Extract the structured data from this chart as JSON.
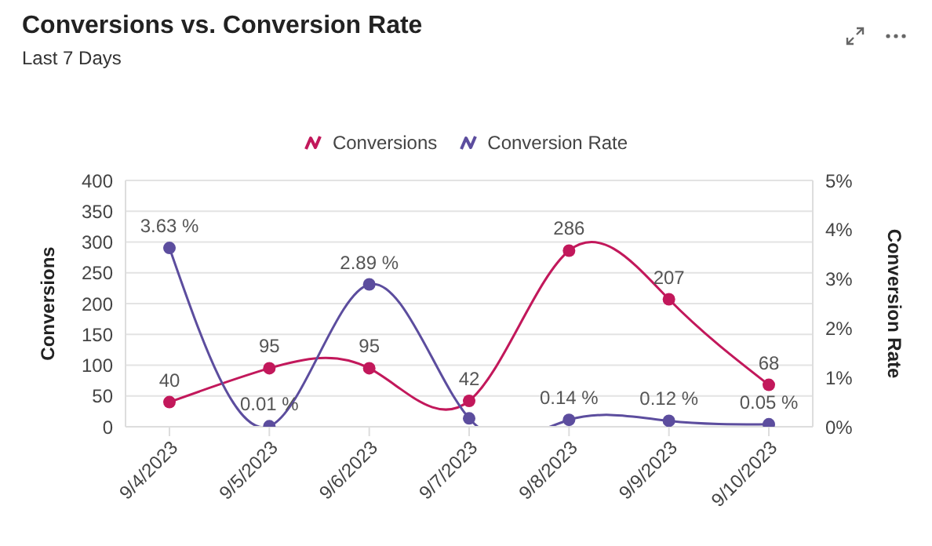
{
  "chart_data": {
    "type": "line",
    "title": "Conversions vs. Conversion Rate",
    "subtitle": "Last 7 Days",
    "ylabel": "Conversions",
    "y2label": "Conversion Rate",
    "categories": [
      "9/4/2023",
      "9/5/2023",
      "9/6/2023",
      "9/7/2023",
      "9/8/2023",
      "9/9/2023",
      "9/10/2023"
    ],
    "series": [
      {
        "name": "Conversions",
        "color": "#c2185b",
        "values": [
          40,
          95,
          95,
          42,
          286,
          207,
          68
        ],
        "value_labels": [
          "40",
          "95",
          "95",
          "42",
          "286",
          "207",
          "68"
        ]
      },
      {
        "name": "Conversion Rate",
        "color": "#5c4d9e",
        "axis": "y2",
        "values": [
          3.63,
          0.01,
          2.89,
          0.17,
          0.14,
          0.12,
          0.05
        ],
        "value_labels": [
          "3.63 %",
          "0.01 %",
          "2.89 %",
          null,
          "0.14 %",
          "0.12 %",
          "0.05 %"
        ]
      }
    ],
    "ylim": [
      0,
      400
    ],
    "yticks": [
      0,
      50,
      100,
      150,
      200,
      250,
      300,
      350,
      400
    ],
    "y2lim": [
      0,
      5
    ],
    "y2ticks": [
      {
        "value": 0,
        "label": "0%"
      },
      {
        "value": 1,
        "label": "1%"
      },
      {
        "value": 2,
        "label": "2%"
      },
      {
        "value": 3,
        "label": "3%"
      },
      {
        "value": 4,
        "label": "4%"
      },
      {
        "value": 5,
        "label": "5%"
      }
    ],
    "grid": "y",
    "legend": "top",
    "marker": "circle",
    "line_style": "solid"
  }
}
